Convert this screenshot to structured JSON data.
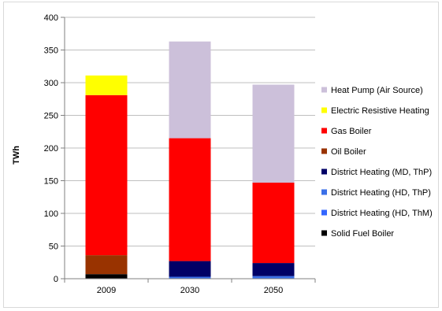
{
  "chart_data": {
    "type": "bar",
    "stacked": true,
    "categories": [
      "2009",
      "2030",
      "2050"
    ],
    "ylabel": "TWh",
    "xlabel": "",
    "title": "",
    "ylim": [
      0,
      400
    ],
    "yticks": [
      0,
      50,
      100,
      150,
      200,
      250,
      300,
      350,
      400
    ],
    "grid": "horizontal",
    "legend_position": "right",
    "legend_order": [
      "Heat Pump (Air Source)",
      "Electric Resistive Heating",
      "Gas Boiler",
      "Oil Boiler",
      "District Heating (MD, ThP)",
      "District Heating (HD, ThP)",
      "District Heating (HD, ThM)",
      "Solid Fuel Boiler"
    ],
    "series": [
      {
        "name": "Solid Fuel Boiler",
        "color": "#000000",
        "values": [
          7,
          0,
          0
        ]
      },
      {
        "name": "District Heating (HD, ThM)",
        "color": "#3366ff",
        "values": [
          0,
          0,
          0
        ]
      },
      {
        "name": "District Heating (HD, ThP)",
        "color": "#3a6fe8",
        "values": [
          0,
          3,
          4
        ]
      },
      {
        "name": "District Heating (MD, ThP)",
        "color": "#000066",
        "values": [
          0,
          24,
          20
        ]
      },
      {
        "name": "Oil Boiler",
        "color": "#993300",
        "values": [
          29,
          0,
          0
        ]
      },
      {
        "name": "Gas Boiler",
        "color": "#ff0000",
        "values": [
          245,
          188,
          123
        ]
      },
      {
        "name": "Electric Resistive Heating",
        "color": "#ffff00",
        "values": [
          30,
          0,
          0
        ]
      },
      {
        "name": "Heat Pump (Air Source)",
        "color": "#ccc0da",
        "values": [
          0,
          148,
          150
        ]
      }
    ]
  }
}
